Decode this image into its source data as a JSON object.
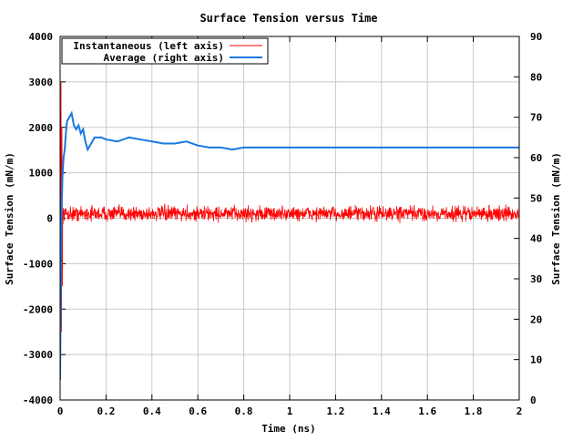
{
  "chart_data": {
    "type": "line",
    "title": "Surface Tension versus Time",
    "xlabel": "Time (ns)",
    "ylabel_left": "Surface Tension (mN/m)",
    "ylabel_right": "Surface Tension (mN/m)",
    "xlim": [
      0,
      2
    ],
    "ylim_left": [
      -4000,
      4000
    ],
    "ylim_right": [
      0,
      90
    ],
    "x_ticks": [
      0,
      0.2,
      0.4,
      0.6,
      0.8,
      1,
      1.2,
      1.4,
      1.6,
      1.8,
      2
    ],
    "x_tick_labels": [
      "0",
      "0.2",
      "0.4",
      "0.6",
      "0.8",
      "1",
      "1.2",
      "1.4",
      "1.6",
      "1.8",
      "2"
    ],
    "y_left_ticks": [
      -4000,
      -3000,
      -2000,
      -1000,
      0,
      1000,
      2000,
      3000,
      4000
    ],
    "y_left_tick_labels": [
      "-4000",
      "-3000",
      "-2000",
      "-1000",
      "0",
      "1000",
      "2000",
      "3000",
      "4000"
    ],
    "y_right_ticks": [
      0,
      10,
      20,
      30,
      40,
      50,
      60,
      70,
      80,
      90
    ],
    "y_right_tick_labels": [
      "0",
      "10",
      "20",
      "30",
      "40",
      "50",
      "60",
      "70",
      "80",
      "90"
    ],
    "grid": true,
    "legend_position": "top-left",
    "series": [
      {
        "name": "Instantaneous (left axis)",
        "axis": "left",
        "color": "#ff0000",
        "band": {
          "x_start": 0.0,
          "x_end": 2.0,
          "center": 100,
          "amplitude": 200,
          "spikes": [
            {
              "x": 0.0,
              "y": 4000
            },
            {
              "x": 0.002,
              "y": -3500
            },
            {
              "x": 0.004,
              "y": 3000
            },
            {
              "x": 0.006,
              "y": -2500
            },
            {
              "x": 0.008,
              "y": 2000
            },
            {
              "x": 0.01,
              "y": -1500
            }
          ]
        }
      },
      {
        "name": "Average (right axis)",
        "axis": "right",
        "color": "#1a78e0",
        "x": [
          0.0,
          0.003,
          0.006,
          0.01,
          0.015,
          0.02,
          0.025,
          0.03,
          0.04,
          0.05,
          0.06,
          0.07,
          0.08,
          0.09,
          0.1,
          0.11,
          0.12,
          0.13,
          0.15,
          0.18,
          0.2,
          0.25,
          0.3,
          0.35,
          0.4,
          0.45,
          0.5,
          0.55,
          0.6,
          0.65,
          0.7,
          0.75,
          0.8,
          0.9,
          1.0,
          1.1,
          1.2,
          1.3,
          1.4,
          1.5,
          1.6,
          1.7,
          1.8,
          1.9,
          2.0
        ],
        "values": [
          5,
          30,
          45,
          55,
          60,
          62,
          66,
          69,
          70,
          71,
          68,
          67,
          68,
          66,
          67,
          64,
          62,
          63,
          65,
          65,
          64.5,
          64,
          65,
          64.5,
          64,
          63.5,
          63.5,
          64,
          63,
          62.5,
          62.5,
          62,
          62.5,
          62.5,
          62.5,
          62.5,
          62.5,
          62.5,
          62.5,
          62.5,
          62.5,
          62.5,
          62.5,
          62.5,
          62.5
        ]
      }
    ]
  }
}
